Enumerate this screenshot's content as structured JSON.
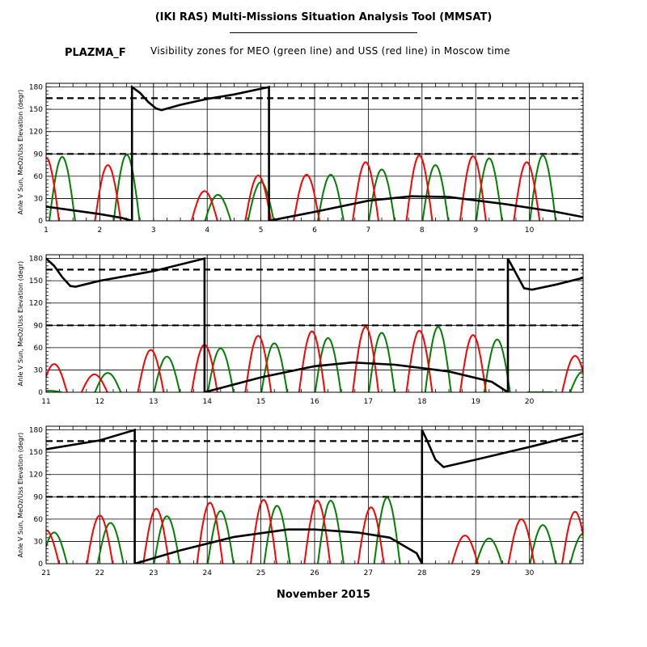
{
  "header": {
    "title": "(IKI RAS) Multi-Missions Situation Analysis Tool (MMSAT)",
    "satellite": "PLAZMA_F",
    "subtitle": "Visibility zones for MEO (green line) and USS (red line) in Moscow time"
  },
  "footer": {
    "month": "November 2015"
  },
  "chart_data": [
    {
      "type": "line",
      "ylabel": "Anle V Sun, MeOz/Uss Elevation (degr)",
      "xlim": [
        1,
        11
      ],
      "ylim": [
        0,
        185
      ],
      "xticks": [
        1,
        2,
        3,
        4,
        5,
        6,
        7,
        8,
        9,
        10
      ],
      "yticks": [
        0,
        30,
        60,
        90,
        120,
        150,
        180
      ],
      "grid": true,
      "hlines": [
        90,
        165
      ],
      "colors": {
        "sun": "#000000",
        "meo": "#008000",
        "uss": "#ff0000"
      },
      "sun_angle": [
        [
          1,
          19
        ],
        [
          1.5,
          14
        ],
        [
          2.0,
          9
        ],
        [
          2.4,
          4
        ],
        [
          2.6,
          0
        ],
        [
          2.6,
          180
        ],
        [
          2.75,
          172
        ],
        [
          2.9,
          160
        ],
        [
          3.05,
          151
        ],
        [
          3.15,
          149
        ],
        [
          3.5,
          156
        ],
        [
          4.0,
          164
        ],
        [
          4.5,
          170
        ],
        [
          5.15,
          180
        ],
        [
          5.15,
          0
        ],
        [
          6,
          12
        ],
        [
          7,
          27
        ],
        [
          7.8,
          33
        ],
        [
          8.5,
          32
        ],
        [
          9.5,
          23
        ],
        [
          10.5,
          12
        ],
        [
          11,
          5
        ]
      ],
      "meo_passes": [
        [
          1.3,
          86
        ],
        [
          2.5,
          89
        ],
        [
          4.2,
          35
        ],
        [
          5.0,
          52
        ],
        [
          6.3,
          62
        ],
        [
          7.25,
          69
        ],
        [
          8.25,
          75
        ],
        [
          9.25,
          84
        ],
        [
          10.25,
          88
        ]
      ],
      "uss_passes": [
        [
          1.0,
          85
        ],
        [
          2.15,
          75
        ],
        [
          3.95,
          40
        ],
        [
          4.95,
          61
        ],
        [
          5.85,
          62
        ],
        [
          6.95,
          79
        ],
        [
          7.95,
          88
        ],
        [
          8.95,
          87
        ],
        [
          9.95,
          79
        ]
      ]
    },
    {
      "type": "line",
      "ylabel": "Anle V Sun, MeOz/Uss Elevation (degr)",
      "xlim": [
        11,
        21
      ],
      "ylim": [
        0,
        185
      ],
      "xticks": [
        11,
        12,
        13,
        14,
        15,
        16,
        17,
        18,
        19,
        20
      ],
      "yticks": [
        0,
        30,
        60,
        90,
        120,
        150,
        180
      ],
      "grid": true,
      "hlines": [
        90,
        165
      ],
      "colors": {
        "sun": "#000000",
        "meo": "#008000",
        "uss": "#ff0000"
      },
      "sun_angle": [
        [
          11,
          180
        ],
        [
          11.15,
          170
        ],
        [
          11.3,
          155
        ],
        [
          11.45,
          143
        ],
        [
          11.55,
          142
        ],
        [
          12,
          150
        ],
        [
          13,
          163
        ],
        [
          13.95,
          180
        ],
        [
          13.95,
          0
        ],
        [
          15,
          20
        ],
        [
          16,
          35
        ],
        [
          16.7,
          40
        ],
        [
          17.5,
          37
        ],
        [
          18.5,
          28
        ],
        [
          19.3,
          14
        ],
        [
          19.6,
          0
        ],
        [
          19.6,
          180
        ],
        [
          19.75,
          160
        ],
        [
          19.9,
          140
        ],
        [
          20.05,
          138
        ],
        [
          20.5,
          145
        ],
        [
          21,
          154
        ]
      ],
      "meo_passes": [
        [
          11.05,
          2
        ],
        [
          12.15,
          26
        ],
        [
          13.25,
          48
        ],
        [
          14.25,
          59
        ],
        [
          15.25,
          66
        ],
        [
          16.25,
          73
        ],
        [
          17.25,
          80
        ],
        [
          18.3,
          88
        ],
        [
          19.4,
          71
        ],
        [
          20.2,
          0
        ],
        [
          21.0,
          28
        ]
      ],
      "uss_passes": [
        [
          11.15,
          38
        ],
        [
          11.9,
          24
        ],
        [
          12.95,
          57
        ],
        [
          13.95,
          64
        ],
        [
          14.95,
          76
        ],
        [
          15.95,
          82
        ],
        [
          16.95,
          88
        ],
        [
          17.95,
          83
        ],
        [
          18.95,
          77
        ],
        [
          20.85,
          49
        ]
      ]
    },
    {
      "type": "line",
      "ylabel": "Anle V Sun, MeOz/Uss Elevation (degr)",
      "xlim": [
        21,
        31
      ],
      "ylim": [
        0,
        185
      ],
      "xticks": [
        21,
        22,
        23,
        24,
        25,
        26,
        27,
        28,
        29,
        30
      ],
      "yticks": [
        0,
        30,
        60,
        90,
        120,
        150,
        180
      ],
      "grid": true,
      "hlines": [
        90,
        165
      ],
      "colors": {
        "sun": "#000000",
        "meo": "#008000",
        "uss": "#ff0000"
      },
      "sun_angle": [
        [
          21,
          154
        ],
        [
          22,
          166
        ],
        [
          22.65,
          180
        ],
        [
          22.65,
          0
        ],
        [
          23.5,
          18
        ],
        [
          24.5,
          36
        ],
        [
          25.5,
          46
        ],
        [
          26,
          46
        ],
        [
          26.8,
          42
        ],
        [
          27.4,
          35
        ],
        [
          27.9,
          14
        ],
        [
          28.0,
          0
        ],
        [
          28.0,
          180
        ],
        [
          28.1,
          165
        ],
        [
          28.25,
          140
        ],
        [
          28.4,
          130
        ],
        [
          29,
          140
        ],
        [
          30,
          157
        ],
        [
          31,
          175
        ]
      ],
      "meo_passes": [
        [
          21.15,
          42
        ],
        [
          22.2,
          55
        ],
        [
          23.25,
          64
        ],
        [
          24.25,
          71
        ],
        [
          25.3,
          78
        ],
        [
          26.3,
          85
        ],
        [
          27.35,
          89
        ],
        [
          29.25,
          34
        ],
        [
          30.25,
          52
        ],
        [
          31.0,
          40
        ]
      ],
      "uss_passes": [
        [
          21.0,
          45
        ],
        [
          22.0,
          65
        ],
        [
          23.05,
          74
        ],
        [
          24.05,
          82
        ],
        [
          25.05,
          86
        ],
        [
          26.05,
          85
        ],
        [
          27.05,
          76
        ],
        [
          28.8,
          38
        ],
        [
          29.85,
          60
        ],
        [
          30.85,
          70
        ]
      ]
    }
  ]
}
